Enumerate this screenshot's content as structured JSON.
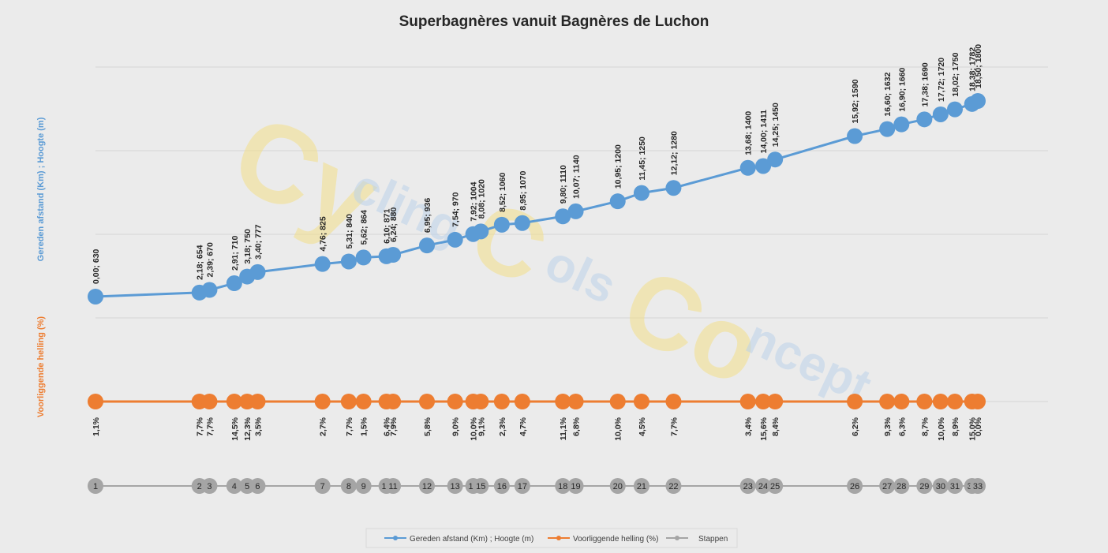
{
  "chart_data": {
    "type": "line",
    "title": "Superbagnères vanuit Bagnères de Luchon",
    "ylabel_primary": "Gereden afstand (Km) ;  Hoogte (m)",
    "ylabel_secondary": "Voorliggende helling (%)",
    "watermark": [
      "Cy",
      "cling",
      "C",
      "ols",
      "Co",
      "ncept"
    ],
    "legend_position": "bottom",
    "grid": true,
    "series": [
      {
        "name": "Gereden afstand (Km) ; Hoogte (m)",
        "color": "#5b9bd5",
        "x": [
          0.0,
          2.18,
          2.39,
          2.91,
          3.18,
          3.4,
          4.76,
          5.31,
          5.62,
          6.1,
          6.24,
          6.95,
          7.54,
          7.92,
          8.08,
          8.52,
          8.95,
          9.8,
          10.07,
          10.95,
          11.45,
          12.12,
          13.68,
          14.0,
          14.25,
          15.92,
          16.6,
          16.9,
          17.38,
          17.72,
          18.02,
          18.38,
          18.5
        ],
        "y": [
          630,
          654,
          670,
          710,
          750,
          777,
          825,
          840,
          864,
          871,
          880,
          936,
          970,
          1004,
          1020,
          1060,
          1070,
          1110,
          1140,
          1200,
          1250,
          1280,
          1400,
          1411,
          1450,
          1590,
          1632,
          1660,
          1690,
          1720,
          1750,
          1782,
          1800
        ],
        "labels": [
          "0,00; 630",
          "2,18; 654",
          "2,39; 670",
          "2,91; 710",
          "3,18; 750",
          "3,40; 777",
          "4,76; 825",
          "5,31; 840",
          "5,62; 864",
          "6,10; 871",
          "6,24; 880",
          "6,95; 936",
          "7,54; 970",
          "7,92; 1004",
          "8,08; 1020",
          "8,52; 1060",
          "8,95; 1070",
          "9,80; 1110",
          "10,07; 1140",
          "10,95; 1200",
          "11,45; 1250",
          "12,12; 1280",
          "13,68; 1400",
          "14,00; 1411",
          "14,25; 1450",
          "15,92; 1590",
          "16,60; 1632",
          "16,90; 1660",
          "17,38; 1690",
          "17,72; 1720",
          "18,02; 1750",
          "18,38; 1782",
          "18,50; 1800"
        ]
      },
      {
        "name": "Voorliggende helling (%)",
        "color": "#ed7d31",
        "labels": [
          "1,1%",
          "7,7%",
          "7,7%",
          "14,5%",
          "12,3%",
          "3,5%",
          "2,7%",
          "7,7%",
          "1,5%",
          "6,4%",
          "7,9%",
          "5,8%",
          "9,0%",
          "10,0%",
          "9,1%",
          "2,3%",
          "4,7%",
          "11,1%",
          "6,8%",
          "10,0%",
          "4,5%",
          "7,7%",
          "3,4%",
          "15,6%",
          "8,4%",
          "6,2%",
          "9,3%",
          "6,3%",
          "8,7%",
          "10,0%",
          "8,9%",
          "15,0%",
          "0,0%"
        ]
      },
      {
        "name": "Stappen",
        "color": "#a5a5a5",
        "labels": [
          "1",
          "2",
          "3",
          "4",
          "5",
          "6",
          "7",
          "8",
          "9",
          "10",
          "11",
          "12",
          "13",
          "14",
          "15",
          "16",
          "17",
          "18",
          "19",
          "20",
          "21",
          "22",
          "23",
          "24",
          "25",
          "26",
          "27",
          "28",
          "29",
          "30",
          "31",
          "32",
          "33"
        ]
      }
    ]
  }
}
